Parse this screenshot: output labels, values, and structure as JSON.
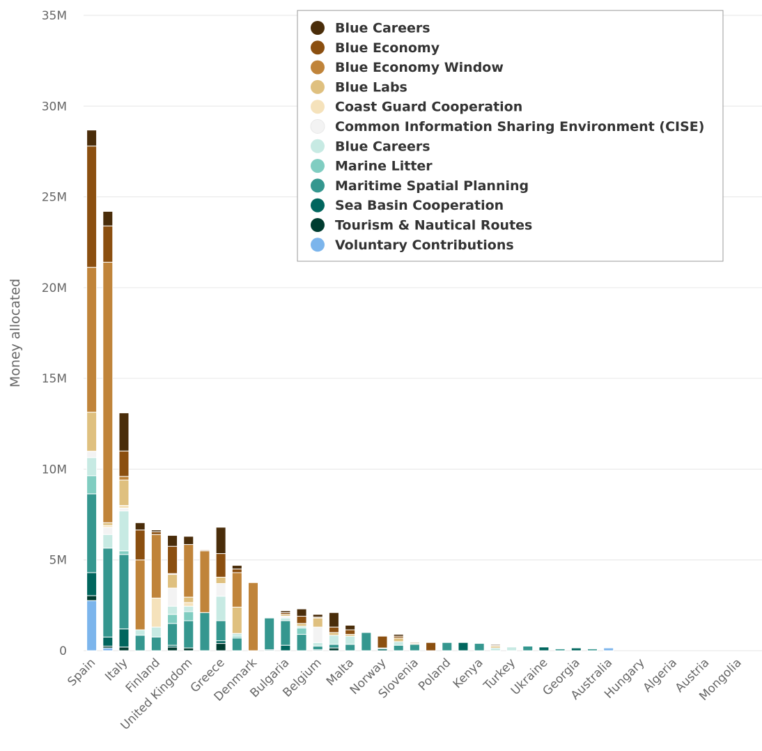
{
  "chart_data": {
    "type": "stacked_bar",
    "y_label": "Money allocated",
    "ylim": [
      0,
      35000000
    ],
    "yticks": [
      {
        "value": 0,
        "label": "0"
      },
      {
        "value": 5000000,
        "label": "5M"
      },
      {
        "value": 10000000,
        "label": "10M"
      },
      {
        "value": 15000000,
        "label": "15M"
      },
      {
        "value": 20000000,
        "label": "20M"
      },
      {
        "value": 25000000,
        "label": "25M"
      },
      {
        "value": 30000000,
        "label": "30M"
      },
      {
        "value": 35000000,
        "label": "35M"
      }
    ],
    "grid": true,
    "legend": "top-right",
    "categories": [
      "Spain",
      null,
      "Italy",
      null,
      "Finland",
      null,
      "United Kingdom",
      null,
      "Greece",
      null,
      "Denmark",
      null,
      "Bulgaria",
      null,
      "Belgium",
      null,
      "Malta",
      null,
      "Norway",
      null,
      "Slovenia",
      null,
      "Poland",
      null,
      "Kenya",
      null,
      "Turkey",
      null,
      "Ukraine",
      null,
      "Georgia",
      null,
      "Australia",
      null,
      "Hungary",
      null,
      "Algeria",
      null,
      "Austria",
      null,
      "Mongolia",
      null
    ],
    "series": [
      {
        "name": "Blue Careers",
        "color": "#4a2d0a",
        "values": [
          880000,
          800000,
          2100000,
          400000,
          100000,
          600000,
          450000,
          0,
          1450000,
          200000,
          0,
          0,
          100000,
          400000,
          150000,
          800000,
          250000,
          0,
          0,
          100000,
          0,
          0,
          0,
          0,
          0,
          50000,
          0,
          0,
          0,
          0,
          0,
          0,
          0,
          0,
          0,
          0,
          0,
          0,
          0,
          0,
          0,
          0
        ]
      },
      {
        "name": "Blue Economy",
        "color": "#8b4f10",
        "values": [
          6680000,
          2000000,
          1400000,
          1650000,
          150000,
          1500000,
          0,
          50000,
          1300000,
          200000,
          0,
          0,
          100000,
          400000,
          50000,
          300000,
          250000,
          0,
          650000,
          100000,
          50000,
          450000,
          0,
          0,
          0,
          50000,
          0,
          0,
          0,
          0,
          0,
          0,
          0,
          0,
          0,
          0,
          0,
          0,
          0,
          0,
          0,
          0
        ]
      },
      {
        "name": "Blue Economy Window",
        "color": "#c0843a",
        "values": [
          7980000,
          14350000,
          200000,
          3850000,
          3500000,
          50000,
          2900000,
          3400000,
          0,
          1900000,
          3750000,
          0,
          0,
          0,
          0,
          0,
          0,
          0,
          0,
          0,
          0,
          0,
          0,
          0,
          0,
          0,
          0,
          0,
          0,
          0,
          0,
          0,
          0,
          0,
          0,
          0,
          0,
          0,
          0,
          0,
          0,
          0
        ]
      },
      {
        "name": "Blue Labs",
        "color": "#dfc07f",
        "values": [
          2150000,
          150000,
          1400000,
          0,
          0,
          750000,
          300000,
          0,
          350000,
          1450000,
          0,
          0,
          100000,
          150000,
          500000,
          150000,
          100000,
          0,
          0,
          200000,
          50000,
          0,
          0,
          0,
          0,
          100000,
          0,
          0,
          0,
          0,
          0,
          0,
          0,
          0,
          0,
          0,
          0,
          0,
          0,
          0,
          0,
          0
        ]
      },
      {
        "name": "Coast Guard Cooperation",
        "color": "#f5e2bb",
        "values": [
          0,
          100000,
          150000,
          0,
          1600000,
          0,
          200000,
          0,
          0,
          0,
          0,
          0,
          0,
          0,
          0,
          0,
          0,
          0,
          0,
          0,
          0,
          0,
          0,
          0,
          0,
          0,
          0,
          0,
          0,
          0,
          0,
          0,
          0,
          0,
          0,
          0,
          0,
          0,
          0,
          0,
          0,
          0
        ]
      },
      {
        "name": "Common Information Sharing Environment (CISE)",
        "color": "#f3f3f3",
        "values": [
          350000,
          400000,
          150000,
          0,
          0,
          1000000,
          0,
          0,
          700000,
          0,
          0,
          0,
          100000,
          0,
          850000,
          0,
          0,
          0,
          0,
          0,
          0,
          0,
          0,
          0,
          0,
          0,
          0,
          0,
          0,
          0,
          0,
          0,
          0,
          0,
          0,
          0,
          0,
          0,
          0,
          0,
          0,
          0
        ]
      },
      {
        "name": "Blue Careers",
        "color": "#c7eae3",
        "values": [
          1000000,
          750000,
          2200000,
          300000,
          550000,
          450000,
          300000,
          0,
          1350000,
          150000,
          0,
          0,
          150000,
          100000,
          200000,
          500000,
          450000,
          0,
          0,
          200000,
          0,
          0,
          0,
          0,
          0,
          150000,
          200000,
          0,
          0,
          0,
          0,
          0,
          0,
          0,
          0,
          0,
          0,
          0,
          0,
          0,
          0,
          0
        ]
      },
      {
        "name": "Marine Litter",
        "color": "#80cdc1",
        "values": [
          1000000,
          0,
          200000,
          0,
          0,
          500000,
          500000,
          0,
          0,
          100000,
          0,
          0,
          0,
          350000,
          0,
          0,
          0,
          0,
          0,
          0,
          0,
          0,
          0,
          0,
          0,
          0,
          0,
          0,
          0,
          0,
          0,
          0,
          0,
          0,
          0,
          0,
          0,
          0,
          0,
          0,
          0,
          0
        ]
      },
      {
        "name": "Maritime Spatial Planning",
        "color": "#35978f",
        "values": [
          4340000,
          4900000,
          4100000,
          850000,
          750000,
          1200000,
          1500000,
          2100000,
          1100000,
          700000,
          0,
          1750000,
          1350000,
          900000,
          200000,
          200000,
          350000,
          1000000,
          50000,
          300000,
          350000,
          0,
          450000,
          0,
          400000,
          0,
          0,
          250000,
          0,
          100000,
          0,
          100000,
          0,
          0,
          0,
          0,
          0,
          0,
          0,
          0,
          0,
          0
        ]
      },
      {
        "name": "Sea Basin Cooperation",
        "color": "#01665e",
        "values": [
          1270000,
          500000,
          1000000,
          0,
          0,
          100000,
          0,
          0,
          150000,
          0,
          0,
          50000,
          300000,
          0,
          50000,
          0,
          0,
          0,
          100000,
          0,
          0,
          0,
          0,
          450000,
          0,
          0,
          0,
          0,
          200000,
          0,
          150000,
          0,
          0,
          0,
          0,
          0,
          0,
          0,
          0,
          0,
          0,
          0
        ]
      },
      {
        "name": "Tourism & Nautical Routes",
        "color": "#003c30",
        "values": [
          270000,
          100000,
          200000,
          0,
          0,
          200000,
          150000,
          0,
          400000,
          0,
          0,
          0,
          0,
          0,
          0,
          150000,
          0,
          0,
          0,
          0,
          0,
          0,
          0,
          0,
          0,
          0,
          0,
          0,
          0,
          0,
          0,
          0,
          0,
          0,
          0,
          0,
          0,
          0,
          0,
          0,
          0,
          0
        ]
      },
      {
        "name": "Voluntary Contributions",
        "color": "#7cb5ec",
        "values": [
          2760000,
          150000,
          0,
          0,
          0,
          0,
          0,
          0,
          0,
          0,
          0,
          0,
          0,
          0,
          0,
          0,
          0,
          0,
          0,
          0,
          0,
          0,
          0,
          0,
          0,
          0,
          0,
          0,
          0,
          0,
          0,
          0,
          150000,
          0,
          0,
          0,
          0,
          0,
          0,
          0,
          0,
          0
        ]
      }
    ]
  }
}
